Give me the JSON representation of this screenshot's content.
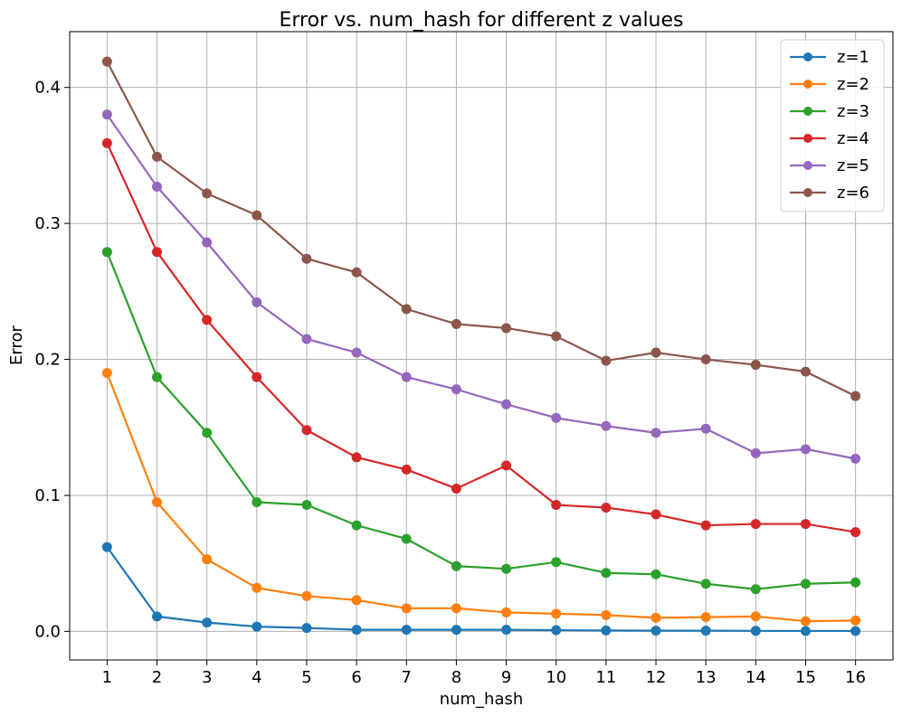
{
  "chart_data": {
    "type": "line",
    "title": "Error vs. num_hash for different z values",
    "xlabel": "num_hash",
    "ylabel": "Error",
    "x": [
      1,
      2,
      3,
      4,
      5,
      6,
      7,
      8,
      9,
      10,
      11,
      12,
      13,
      14,
      15,
      16
    ],
    "xlim": [
      0.25,
      16.75
    ],
    "ylim": [
      -0.021,
      0.441
    ],
    "yticks": [
      0.0,
      0.1,
      0.2,
      0.3,
      0.4
    ],
    "ytick_labels": [
      "0.0",
      "0.1",
      "0.2",
      "0.3",
      "0.4"
    ],
    "grid": true,
    "legend_position": "top-right",
    "marker": "circle",
    "series": [
      {
        "name": "z=1",
        "color": "#1f77b4",
        "values": [
          0.062,
          0.011,
          0.0065,
          0.0035,
          0.0025,
          0.0012,
          0.0012,
          0.0012,
          0.0012,
          0.0009,
          0.0007,
          0.0005,
          0.0005,
          0.0004,
          0.0003,
          0.0003
        ]
      },
      {
        "name": "z=2",
        "color": "#ff7f0e",
        "values": [
          0.19,
          0.095,
          0.053,
          0.032,
          0.026,
          0.023,
          0.017,
          0.017,
          0.014,
          0.013,
          0.012,
          0.01,
          0.0105,
          0.011,
          0.0075,
          0.008
        ]
      },
      {
        "name": "z=3",
        "color": "#2ca02c",
        "values": [
          0.279,
          0.187,
          0.146,
          0.095,
          0.093,
          0.078,
          0.068,
          0.048,
          0.046,
          0.051,
          0.043,
          0.042,
          0.035,
          0.031,
          0.035,
          0.036
        ]
      },
      {
        "name": "z=4",
        "color": "#d62728",
        "values": [
          0.359,
          0.279,
          0.229,
          0.187,
          0.148,
          0.128,
          0.119,
          0.105,
          0.122,
          0.093,
          0.091,
          0.086,
          0.078,
          0.079,
          0.079,
          0.073
        ]
      },
      {
        "name": "z=5",
        "color": "#9467bd",
        "values": [
          0.38,
          0.327,
          0.286,
          0.242,
          0.215,
          0.205,
          0.187,
          0.178,
          0.167,
          0.157,
          0.151,
          0.146,
          0.149,
          0.131,
          0.134,
          0.127
        ]
      },
      {
        "name": "z=6",
        "color": "#8c564b",
        "values": [
          0.419,
          0.349,
          0.322,
          0.306,
          0.274,
          0.264,
          0.237,
          0.226,
          0.223,
          0.217,
          0.199,
          0.205,
          0.2,
          0.196,
          0.191,
          0.173
        ]
      }
    ]
  }
}
